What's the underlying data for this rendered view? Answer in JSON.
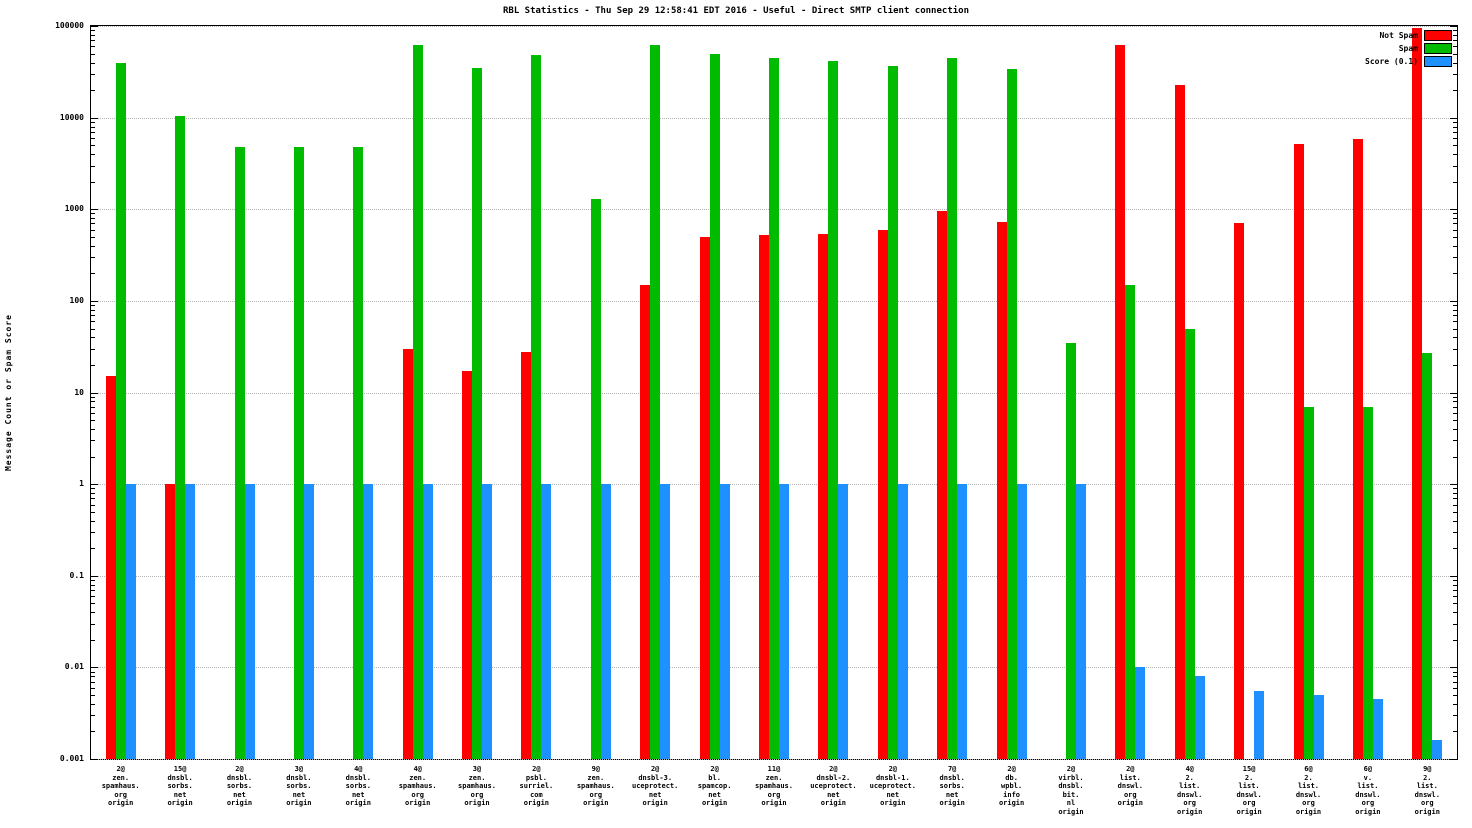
{
  "title": "RBL Statistics - Thu Sep 29 12:58:41 EDT 2016 - Useful - Direct SMTP client connection",
  "ylabel": "Message Count or Spam Score",
  "chart_data": {
    "type": "bar",
    "y_scale": "log10",
    "ylim": [
      0.001,
      100000
    ],
    "y_ticks": [
      "100000",
      "10000",
      "1000",
      "100",
      "10",
      "1",
      "0.1",
      "0.01",
      "0.001"
    ],
    "grid": true,
    "legend_position": "top-right",
    "categories": [
      [
        "2@",
        "zen.",
        "spamhaus.",
        "org",
        "origin"
      ],
      [
        "15@",
        "dnsbl.",
        "sorbs.",
        "net",
        "origin"
      ],
      [
        "2@",
        "dnsbl.",
        "sorbs.",
        "net",
        "origin"
      ],
      [
        "3@",
        "dnsbl.",
        "sorbs.",
        "net",
        "origin"
      ],
      [
        "4@",
        "dnsbl.",
        "sorbs.",
        "net",
        "origin"
      ],
      [
        "4@",
        "zen.",
        "spamhaus.",
        "org",
        "origin"
      ],
      [
        "3@",
        "zen.",
        "spamhaus.",
        "org",
        "origin"
      ],
      [
        "2@",
        "psbl.",
        "surriel.",
        "com",
        "origin"
      ],
      [
        "9@",
        "zen.",
        "spamhaus.",
        "org",
        "origin"
      ],
      [
        "2@",
        "dnsbl-3.",
        "uceprotect.",
        "net",
        "origin"
      ],
      [
        "2@",
        "bl.",
        "spamcop.",
        "net",
        "origin"
      ],
      [
        "11@",
        "zen.",
        "spamhaus.",
        "org",
        "origin"
      ],
      [
        "2@",
        "dnsbl-2.",
        "uceprotect.",
        "net",
        "origin"
      ],
      [
        "2@",
        "dnsbl-1.",
        "uceprotect.",
        "net",
        "origin"
      ],
      [
        "7@",
        "dnsbl.",
        "sorbs.",
        "net",
        "origin"
      ],
      [
        "2@",
        "db.",
        "wpbl.",
        "info",
        "origin"
      ],
      [
        "2@",
        "virbl.",
        "dnsbl.",
        "bit.",
        "nl",
        "origin"
      ],
      [
        "2@",
        "list.",
        "dnswl.",
        "org",
        "origin"
      ],
      [
        "4@",
        "2.",
        "list.",
        "dnswl.",
        "org",
        "origin"
      ],
      [
        "15@",
        "2.",
        "list.",
        "dnswl.",
        "org",
        "origin"
      ],
      [
        "6@",
        "2.",
        "list.",
        "dnswl.",
        "org",
        "origin"
      ],
      [
        "6@",
        "v.",
        "list.",
        "dnswl.",
        "org",
        "origin"
      ],
      [
        "9@",
        "2.",
        "list.",
        "dnswl.",
        "org",
        "origin"
      ]
    ],
    "series": [
      {
        "name": "Not Spam",
        "color": "#ff0000",
        "values": [
          15,
          1,
          null,
          null,
          null,
          30,
          17,
          28,
          null,
          150,
          500,
          520,
          540,
          600,
          950,
          720,
          null,
          62000,
          23000,
          700,
          5200,
          5800,
          95000
        ]
      },
      {
        "name": "Spam",
        "color": "#00bb00",
        "values": [
          40000,
          10500,
          4800,
          4800,
          4800,
          62000,
          35000,
          48000,
          1300,
          62000,
          50000,
          45000,
          42000,
          37000,
          45000,
          34000,
          35,
          150,
          50,
          null,
          7,
          7,
          27
        ]
      },
      {
        "name": "Score (0.1)",
        "color": "#1e90ff",
        "values": [
          1,
          1,
          1,
          1,
          1,
          1,
          1,
          1,
          1,
          1,
          1,
          1,
          1,
          1,
          1,
          1,
          1,
          0.01,
          0.008,
          0.0055,
          0.005,
          0.0045,
          0.0016
        ]
      }
    ]
  }
}
